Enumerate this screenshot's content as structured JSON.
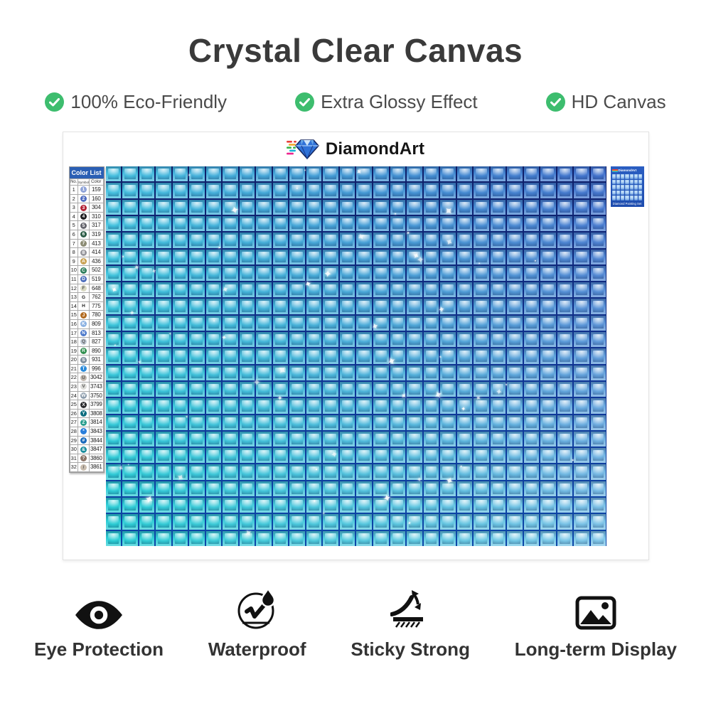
{
  "title": "Crystal Clear Canvas",
  "accent_green": "#3dbd6e",
  "features": [
    {
      "icon": "check-circle-icon",
      "label": "100% Eco-Friendly"
    },
    {
      "icon": "check-circle-icon",
      "label": "Extra Glossy Effect"
    },
    {
      "icon": "check-circle-icon",
      "label": "HD Canvas"
    }
  ],
  "brand": {
    "name": "DiamondArt",
    "icon": "diamond-logo-icon"
  },
  "color_list": {
    "title": "Color List",
    "headers": {
      "no": "No.",
      "symbol": "Symbol",
      "color": "Color"
    },
    "rows": [
      {
        "no": "1",
        "symbol": "1",
        "code": "159",
        "dot": "#8fa3d8",
        "ink": "#fff"
      },
      {
        "no": "2",
        "symbol": "2",
        "code": "160",
        "dot": "#4f6cc0",
        "ink": "#fff"
      },
      {
        "no": "3",
        "symbol": "3",
        "code": "304",
        "dot": "#b22234",
        "ink": "#fff"
      },
      {
        "no": "4",
        "symbol": "4",
        "code": "310",
        "dot": "#1c1c1e",
        "ink": "#fff"
      },
      {
        "no": "5",
        "symbol": "5",
        "code": "317",
        "dot": "#66666e",
        "ink": "#fff"
      },
      {
        "no": "6",
        "symbol": "6",
        "code": "319",
        "dot": "#2c5c46",
        "ink": "#fff"
      },
      {
        "no": "7",
        "symbol": "7",
        "code": "413",
        "dot": "#8c8c74",
        "ink": "#fff"
      },
      {
        "no": "8",
        "symbol": "8",
        "code": "414",
        "dot": "#98989e",
        "ink": "#fff"
      },
      {
        "no": "9",
        "symbol": "A",
        "code": "436",
        "dot": "#c9a254",
        "ink": "#fff"
      },
      {
        "no": "10",
        "symbol": "C",
        "code": "502",
        "dot": "#2f7e5c",
        "ink": "#fff"
      },
      {
        "no": "11",
        "symbol": "D",
        "code": "519",
        "dot": "#4a6cba",
        "ink": "#fff"
      },
      {
        "no": "12",
        "symbol": "F",
        "code": "648",
        "dot": "#d9d9c2",
        "ink": "#555"
      },
      {
        "no": "13",
        "symbol": "G",
        "code": "762",
        "dot": null,
        "ink": "#222"
      },
      {
        "no": "14",
        "symbol": "H",
        "code": "775",
        "dot": null,
        "ink": "#222"
      },
      {
        "no": "15",
        "symbol": "J",
        "code": "780",
        "dot": "#b26a1e",
        "ink": "#fff"
      },
      {
        "no": "16",
        "symbol": "K",
        "code": "809",
        "dot": "#8cb2e2",
        "ink": "#fff"
      },
      {
        "no": "17",
        "symbol": "N",
        "code": "813",
        "dot": "#4a78ca",
        "ink": "#fff"
      },
      {
        "no": "18",
        "symbol": "Q",
        "code": "827",
        "dot": "#c2ccd8",
        "ink": "#555"
      },
      {
        "no": "19",
        "symbol": "R",
        "code": "890",
        "dot": "#2f8e4e",
        "ink": "#fff"
      },
      {
        "no": "20",
        "symbol": "S",
        "code": "931",
        "dot": "#7c8c9c",
        "ink": "#fff"
      },
      {
        "no": "21",
        "symbol": "T",
        "code": "996",
        "dot": "#2a8ada",
        "ink": "#fff"
      },
      {
        "no": "22",
        "symbol": "U",
        "code": "3042",
        "dot": "#c2b8ae",
        "ink": "#555"
      },
      {
        "no": "23",
        "symbol": "V",
        "code": "3743",
        "dot": "#dcdcd8",
        "ink": "#555"
      },
      {
        "no": "24",
        "symbol": "W",
        "code": "3750",
        "dot": "#8c9cac",
        "ink": "#fff"
      },
      {
        "no": "25",
        "symbol": "X",
        "code": "3799",
        "dot": "#2a2a2c",
        "ink": "#fff"
      },
      {
        "no": "26",
        "symbol": "Y",
        "code": "3808",
        "dot": "#0e6e80",
        "ink": "#fff"
      },
      {
        "no": "27",
        "symbol": "Z",
        "code": "3814",
        "dot": "#2a9e8e",
        "ink": "#fff"
      },
      {
        "no": "28",
        "symbol": "*",
        "code": "3843",
        "dot": "#2a7eda",
        "ink": "#fff"
      },
      {
        "no": "29",
        "symbol": "#",
        "code": "3844",
        "dot": "#1a6abc",
        "ink": "#fff"
      },
      {
        "no": "30",
        "symbol": "&",
        "code": "3847",
        "dot": "#1a8c9c",
        "ink": "#fff"
      },
      {
        "no": "31",
        "symbol": "?",
        "code": "3860",
        "dot": "#8a7468",
        "ink": "#fff"
      },
      {
        "no": "32",
        "symbol": "/",
        "code": "3861",
        "dot": "#c8bcae",
        "ink": "#555"
      }
    ]
  },
  "canvas": {
    "cols": 30,
    "rows": 23,
    "corner_colors": {
      "tl": "#45bede",
      "tr": "#4272cc",
      "bl": "#2acdd4",
      "br": "#7fc6e8"
    },
    "grout_top": "#0e1e68",
    "grout_bottom": "#0d47a8",
    "sparkle_color": "#ffffff",
    "sparkle_count": 58
  },
  "thumbnail": {
    "brand": "DiamondArt",
    "caption": "Diamond Painting Set"
  },
  "benefits": [
    {
      "icon": "eye-icon",
      "label": "Eye Protection"
    },
    {
      "icon": "waterproof-drop-icon",
      "label": "Waterproof"
    },
    {
      "icon": "sticky-peel-icon",
      "label": "Sticky Strong"
    },
    {
      "icon": "picture-frame-icon",
      "label": "Long-term Display"
    }
  ]
}
